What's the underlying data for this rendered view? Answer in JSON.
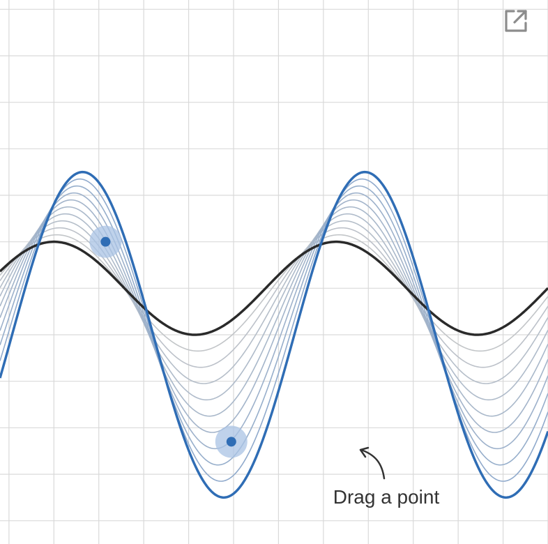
{
  "hint": {
    "text": "Drag a point"
  },
  "toolbar": {
    "expand_icon": "expand-external-icon"
  },
  "colors": {
    "background": "#ffffff",
    "grid": "#d9d9d9",
    "base_curve": "#2a2a2a",
    "target_curve": "#2f6db5",
    "interp_start": "#c8c8c8",
    "interp_end": "#8aa7cc",
    "handle_halo": "#a9c3e4",
    "handle_dot": "#2f6db5",
    "icon": "#8c8c8c",
    "hint_text": "#333333"
  },
  "diagram": {
    "x_range": [
      -1.2,
      11.0
    ],
    "y_range": [
      -5.5,
      6.2
    ],
    "grid_step": 1,
    "base_curve": {
      "amplitude": 1,
      "frequency": 1,
      "phase": 0,
      "offset": 0
    },
    "target_curve": {
      "amplitude": 3.5,
      "frequency": 1,
      "phase": 0.64,
      "offset": -1
    },
    "interpolation_steps": 9,
    "handles": [
      {
        "name": "handle-upper-left",
        "x": 1.15,
        "y": 1.0
      },
      {
        "name": "handle-trough",
        "x": 3.95,
        "y": -3.3
      }
    ]
  }
}
